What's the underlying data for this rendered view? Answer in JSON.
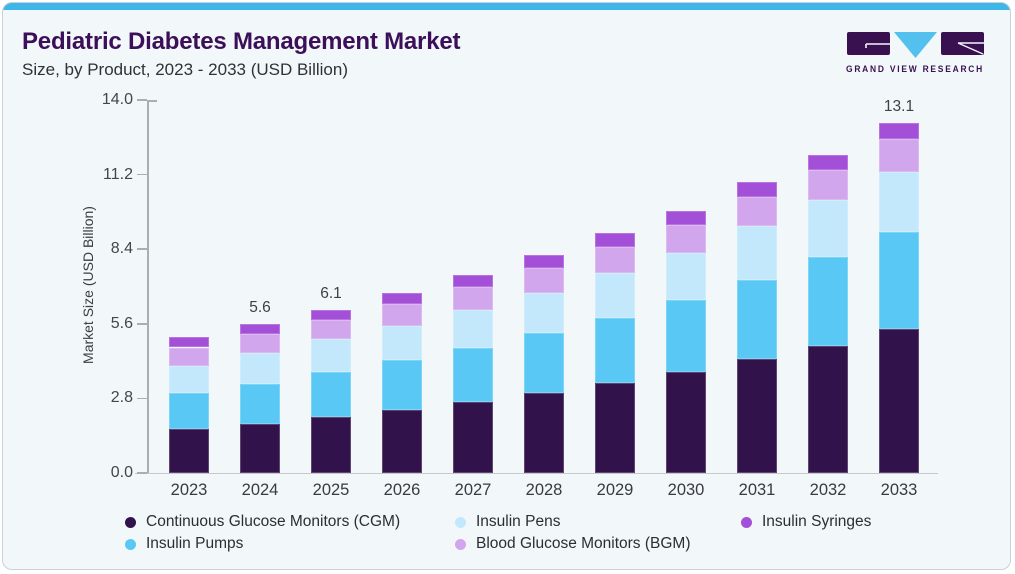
{
  "header": {
    "title": "Pediatric Diabetes Management Market",
    "subtitle": "Size, by Product, 2023 - 2033 (USD Billion)"
  },
  "logo": {
    "text": "GRAND VIEW RESEARCH",
    "purple": "#3a1150",
    "blue": "#53c0ee"
  },
  "colors": {
    "card_background": "#f2f7fa",
    "top_stripe": "#3eb7e8",
    "title_text": "#3c1058",
    "cgm": "#31124a",
    "insulin_pumps": "#5ac8f4",
    "insulin_pens": "#c3e8fb",
    "bgm": "#d2a6ec",
    "insulin_syringes": "#a44fd8"
  },
  "chart_data": {
    "type": "bar",
    "stacked": true,
    "title": "Pediatric Diabetes Management Market Size, by Product, 2023 - 2033 (USD Billion)",
    "categories": [
      "2023",
      "2024",
      "2025",
      "2026",
      "2027",
      "2028",
      "2029",
      "2030",
      "2031",
      "2032",
      "2033"
    ],
    "series": [
      {
        "name": "Continuous Glucose Monitors (CGM)",
        "color": "#31124a",
        "values": [
          1.66,
          1.84,
          2.1,
          2.36,
          2.67,
          3.0,
          3.38,
          3.79,
          4.28,
          4.77,
          5.41
        ]
      },
      {
        "name": "Insulin Pumps",
        "color": "#5ac8f4",
        "values": [
          1.36,
          1.5,
          1.69,
          1.88,
          2.03,
          2.25,
          2.44,
          2.7,
          2.97,
          3.34,
          3.64
        ]
      },
      {
        "name": "Insulin Pens",
        "color": "#c3e8fb",
        "values": [
          0.98,
          1.16,
          1.24,
          1.28,
          1.43,
          1.5,
          1.69,
          1.76,
          2.03,
          2.14,
          2.25
        ]
      },
      {
        "name": "Blood Glucose Monitors (BGM)",
        "color": "#d2a6ec",
        "values": [
          0.71,
          0.72,
          0.72,
          0.83,
          0.86,
          0.94,
          0.98,
          1.05,
          1.08,
          1.12,
          1.25
        ]
      },
      {
        "name": "Insulin Syringes",
        "color": "#a44fd8",
        "values": [
          0.38,
          0.38,
          0.38,
          0.41,
          0.45,
          0.49,
          0.51,
          0.53,
          0.56,
          0.58,
          0.6
        ]
      }
    ],
    "totals_labels": [
      "",
      "5.6",
      "6.1",
      "",
      "",
      "",
      "",
      "",
      "",
      "",
      "13.1"
    ],
    "ylabel": "Market Size (USD Billion)",
    "yticks": [
      "0.0",
      "2.8",
      "5.6",
      "8.4",
      "11.2",
      "14.0"
    ],
    "ylim": [
      0,
      14
    ],
    "grid": false,
    "legend_position": "bottom"
  },
  "legend": {
    "rows": [
      [
        {
          "label": "Continuous Glucose Monitors (CGM)",
          "color": "#31124a"
        },
        {
          "label": "Insulin Pens",
          "color": "#c3e8fb"
        },
        {
          "label": "Insulin Syringes",
          "color": "#a44fd8"
        }
      ],
      [
        {
          "label": "Insulin Pumps",
          "color": "#5ac8f4"
        },
        {
          "label": "Blood Glucose Monitors (BGM)",
          "color": "#d2a6ec"
        }
      ]
    ]
  }
}
